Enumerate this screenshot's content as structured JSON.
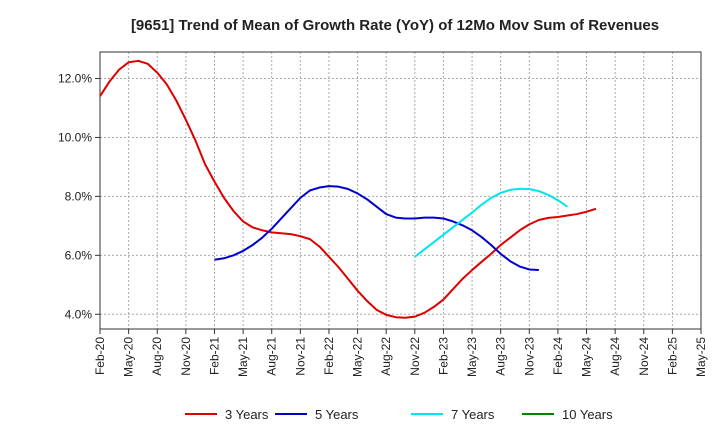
{
  "chart_data": {
    "type": "line",
    "title": "[9651]  Trend of Mean of Growth Rate (YoY) of 12Mo Mov Sum of Revenues",
    "xlabel": "",
    "ylabel": "",
    "ylim": [
      3.5,
      12.9
    ],
    "y_ticks": [
      4.0,
      6.0,
      8.0,
      10.0,
      12.0
    ],
    "y_tick_labels": [
      "4.0%",
      "6.0%",
      "8.0%",
      "10.0%",
      "12.0%"
    ],
    "x_tick_labels": [
      "Feb-20",
      "May-20",
      "Aug-20",
      "Nov-20",
      "Feb-21",
      "May-21",
      "Aug-21",
      "Nov-21",
      "Feb-22",
      "May-22",
      "Aug-22",
      "Nov-22",
      "Feb-23",
      "May-23",
      "Aug-23",
      "Nov-23",
      "Feb-24",
      "May-24",
      "Aug-24",
      "Nov-24",
      "Feb-25",
      "May-25"
    ],
    "grid": true,
    "legend": "bottom",
    "series": [
      {
        "name": "3 Years",
        "color": "#dd0000",
        "start_index": 0,
        "values": [
          11.4,
          11.9,
          12.3,
          12.55,
          12.6,
          12.5,
          12.2,
          11.8,
          11.25,
          10.6,
          9.9,
          9.1,
          8.5,
          7.95,
          7.5,
          7.15,
          6.95,
          6.85,
          6.78,
          6.75,
          6.72,
          6.65,
          6.55,
          6.3,
          5.95,
          5.6,
          5.2,
          4.8,
          4.45,
          4.15,
          3.98,
          3.9,
          3.88,
          3.92,
          4.05,
          4.25,
          4.5,
          4.85,
          5.2,
          5.5,
          5.78,
          6.05,
          6.35,
          6.6,
          6.85,
          7.05,
          7.2,
          7.27,
          7.3,
          7.35,
          7.4,
          7.48,
          7.58
        ]
      },
      {
        "name": "5 Years",
        "color": "#0000cc",
        "start_index": 12,
        "values": [
          5.85,
          5.9,
          6.0,
          6.15,
          6.35,
          6.6,
          6.9,
          7.25,
          7.6,
          7.95,
          8.2,
          8.3,
          8.35,
          8.33,
          8.25,
          8.1,
          7.9,
          7.65,
          7.4,
          7.28,
          7.25,
          7.25,
          7.28,
          7.28,
          7.25,
          7.15,
          7.02,
          6.85,
          6.62,
          6.35,
          6.05,
          5.8,
          5.62,
          5.52,
          5.5
        ]
      },
      {
        "name": "7 Years",
        "color": "#00e5ee",
        "start_index": 33,
        "values": [
          5.95,
          6.2,
          6.45,
          6.7,
          6.95,
          7.2,
          7.45,
          7.72,
          7.95,
          8.12,
          8.22,
          8.26,
          8.25,
          8.18,
          8.05,
          7.87,
          7.65
        ]
      },
      {
        "name": "10 Years",
        "color": "#008000",
        "start_index": 0,
        "values": []
      }
    ]
  }
}
